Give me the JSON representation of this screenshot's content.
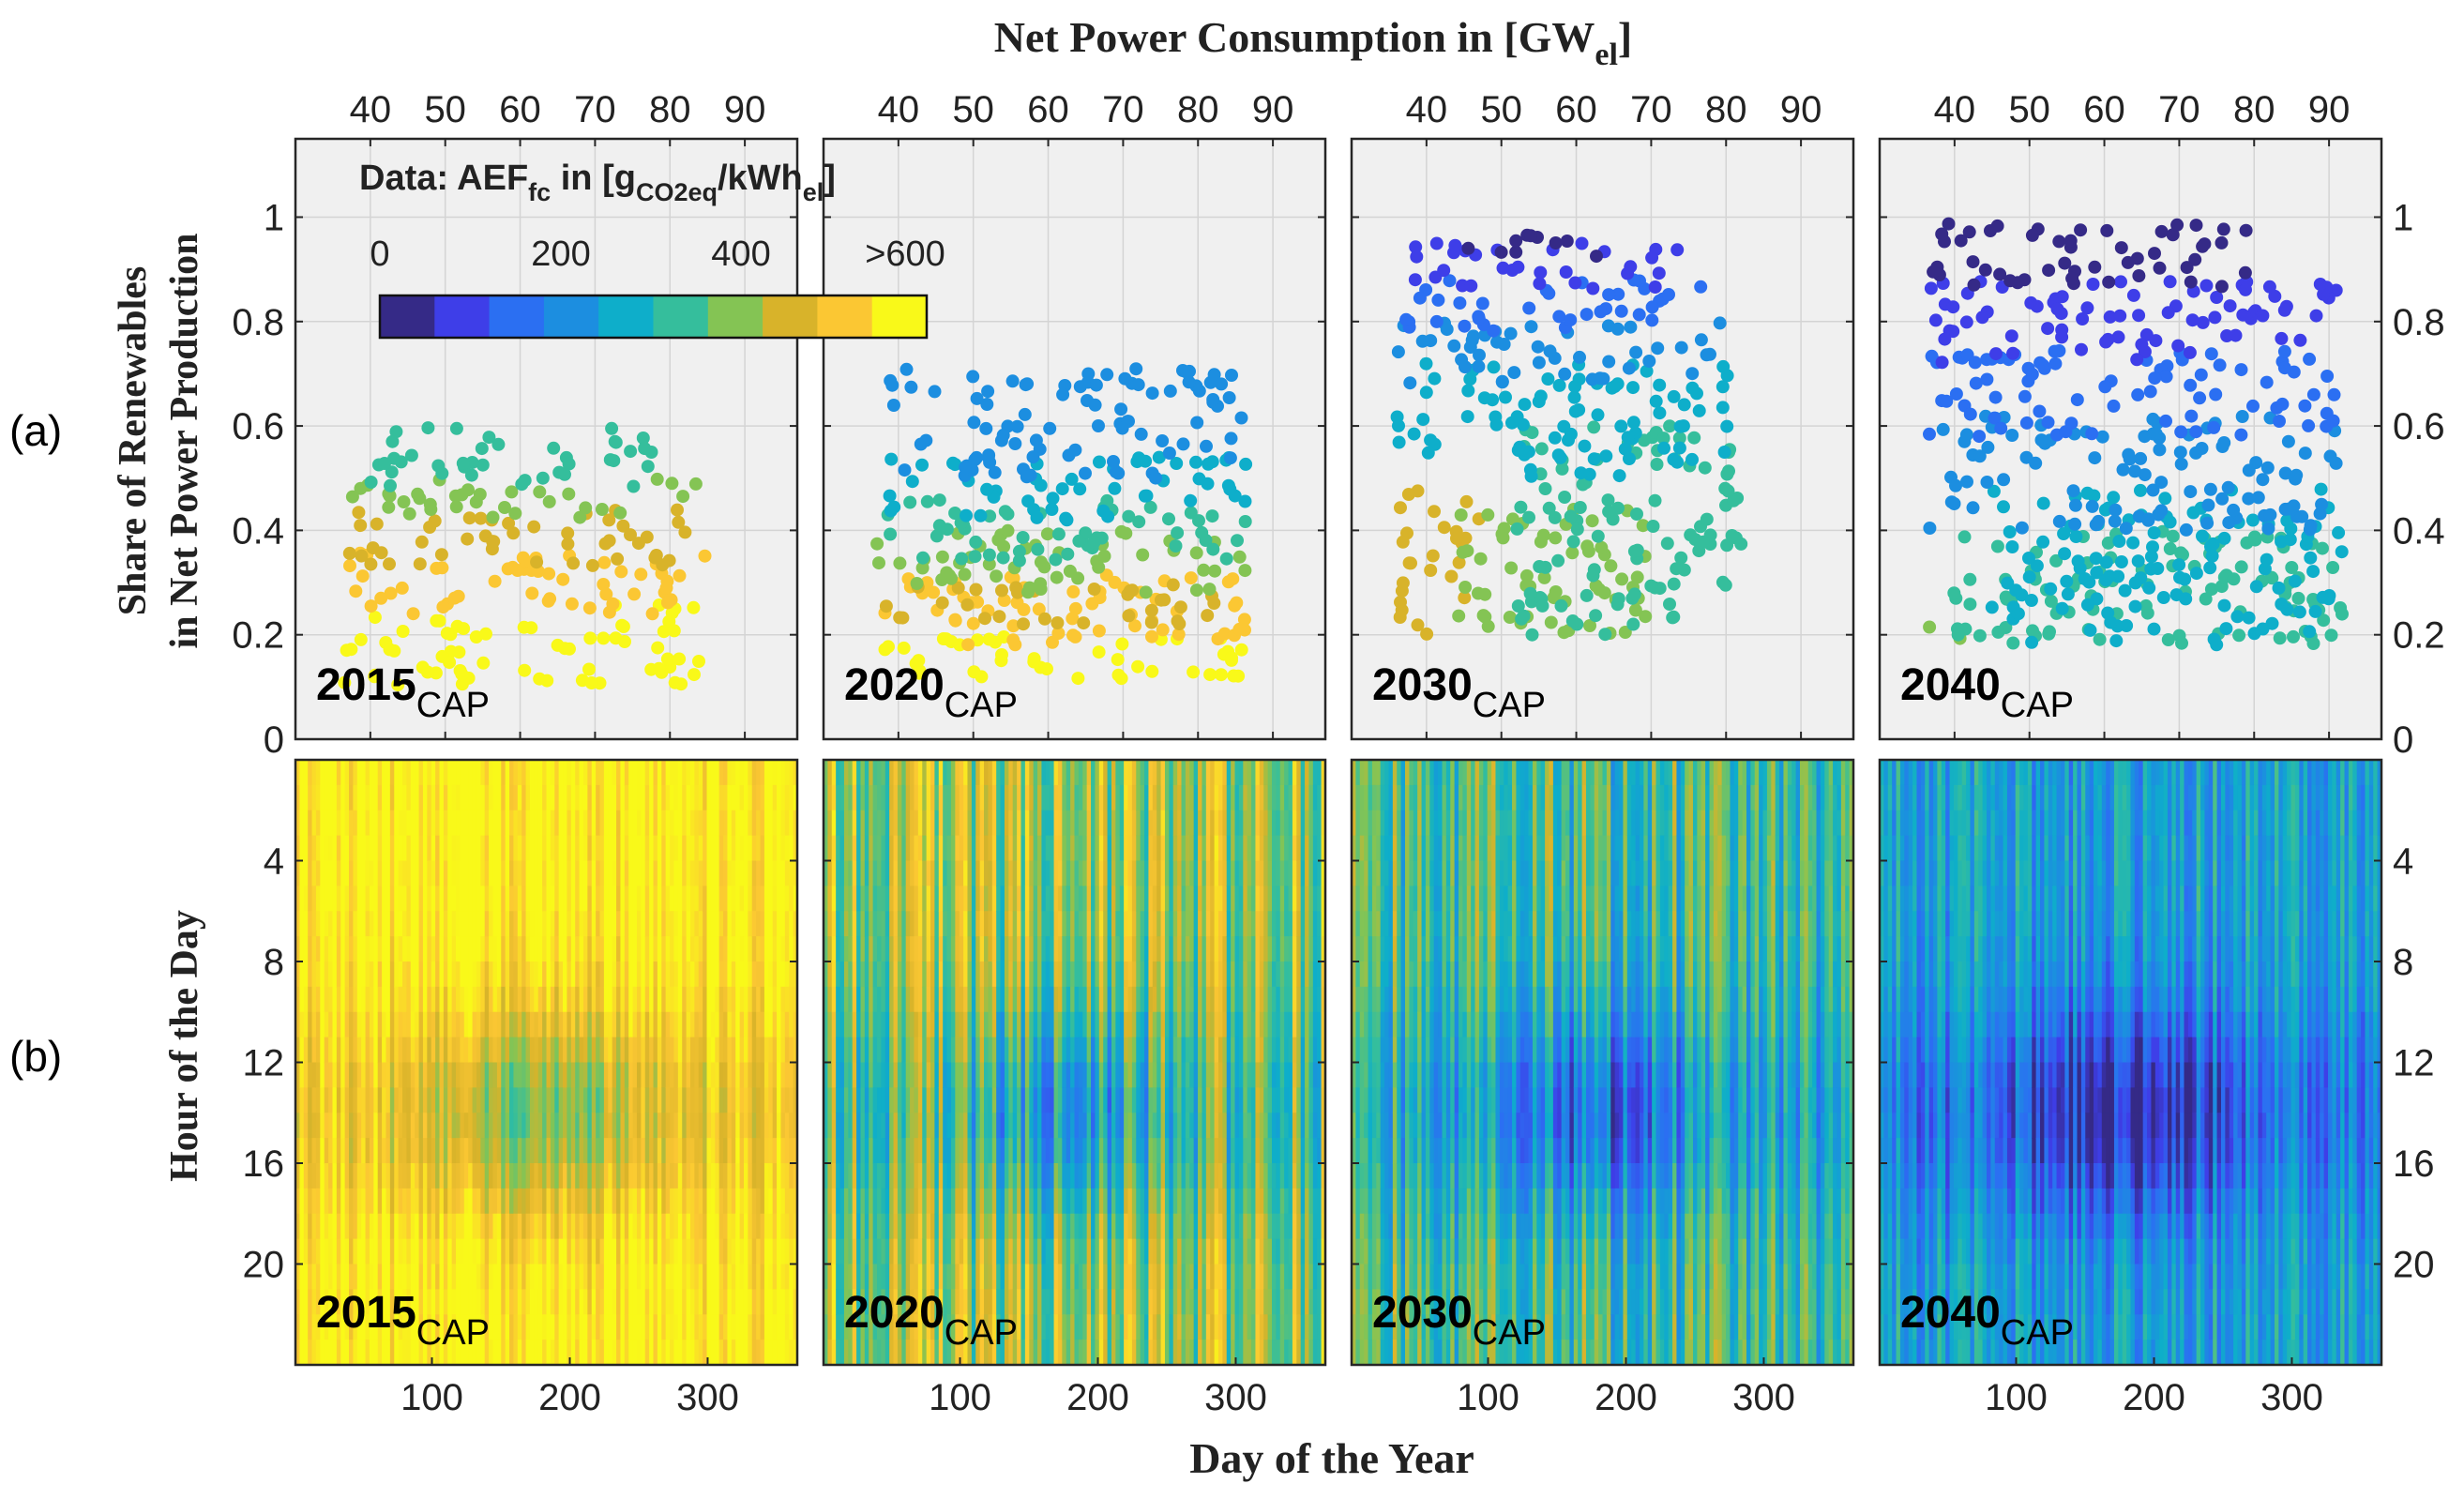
{
  "figure": {
    "top_axis_title": "Net Power Consumption in [GW",
    "top_axis_title_sub": "el",
    "top_axis_title_end": "]",
    "left_axis_title_a_line1": "Share of Renewables",
    "left_axis_title_a_line2": "in Net Power Production",
    "left_axis_title_b": "Hour of the Day",
    "bottom_axis_title": "Day of the Year",
    "row_label_a": "(a)",
    "row_label_b": "(b)"
  },
  "colorbar": {
    "title_main": "Data: AEF",
    "title_sub1": "fc",
    "title_mid": " in [g",
    "title_sub2": "CO2eq",
    "title_mid2": "/kWh",
    "title_sub3": "el",
    "title_end": "]",
    "tick_labels": [
      "0",
      "200",
      "400",
      ">600"
    ],
    "colors": [
      "#352a87",
      "#3e3ee8",
      "#2b6ff2",
      "#1c8ee0",
      "#0eaeca",
      "#35be9c",
      "#84c454",
      "#d8b32a",
      "#fbc733",
      "#f9f919"
    ]
  },
  "chart_data": [
    {
      "type": "scatter",
      "panel": "2015",
      "panel_label": "2015",
      "panel_sub": "CAP",
      "x_axis": {
        "label": "Net Power Consumption in [GWel]",
        "range": [
          30,
          97
        ],
        "ticks": [
          40,
          50,
          60,
          70,
          80,
          90
        ]
      },
      "y_axis": {
        "label": "Share of Renewables in Net Power Production",
        "range": [
          0,
          1.15
        ],
        "ticks": [
          0,
          0.2,
          0.4,
          0.6,
          0.8,
          1
        ]
      },
      "bands": [
        {
          "y": [
            0.1,
            0.26
          ],
          "x": [
            36,
            84
          ],
          "color_index": 9
        },
        {
          "y": [
            0.24,
            0.36
          ],
          "x": [
            36,
            85
          ],
          "color_index": 8
        },
        {
          "y": [
            0.33,
            0.44
          ],
          "x": [
            37,
            84
          ],
          "color_index": 7
        },
        {
          "y": [
            0.42,
            0.5
          ],
          "x": [
            37,
            84
          ],
          "color_index": 6
        },
        {
          "y": [
            0.48,
            0.6
          ],
          "x": [
            40,
            78
          ],
          "color_index": 5
        }
      ]
    },
    {
      "type": "scatter",
      "panel": "2020",
      "panel_label": "2020",
      "panel_sub": "CAP",
      "x_axis": {
        "label": "Net Power Consumption in [GWel]",
        "range": [
          30,
          97
        ],
        "ticks": [
          40,
          50,
          60,
          70,
          80,
          90
        ]
      },
      "y_axis": {
        "range": [
          0,
          1.15
        ],
        "ticks": [
          0,
          0.2,
          0.4,
          0.6,
          0.8,
          1
        ]
      },
      "bands": [
        {
          "y": [
            0.1,
            0.2
          ],
          "x": [
            38,
            87
          ],
          "color_index": 9
        },
        {
          "y": [
            0.18,
            0.32
          ],
          "x": [
            38,
            87
          ],
          "color_index": 8
        },
        {
          "y": [
            0.22,
            0.3
          ],
          "x": [
            38,
            86
          ],
          "color_index": 7
        },
        {
          "y": [
            0.28,
            0.4
          ],
          "x": [
            37,
            87
          ],
          "color_index": 6
        },
        {
          "y": [
            0.34,
            0.46
          ],
          "x": [
            37,
            87
          ],
          "color_index": 5
        },
        {
          "y": [
            0.42,
            0.54
          ],
          "x": [
            38,
            87
          ],
          "color_index": 4
        },
        {
          "y": [
            0.5,
            0.71
          ],
          "x": [
            38,
            87
          ],
          "color_index": 3
        }
      ]
    },
    {
      "type": "scatter",
      "panel": "2030",
      "panel_label": "2030",
      "panel_sub": "CAP",
      "x_axis": {
        "label": "Net Power Consumption in [GWel]",
        "range": [
          30,
          97
        ],
        "ticks": [
          40,
          50,
          60,
          70,
          80,
          90
        ]
      },
      "y_axis": {
        "range": [
          0,
          1.15
        ],
        "ticks": [
          0,
          0.2,
          0.4,
          0.6,
          0.8,
          1
        ]
      },
      "bands": [
        {
          "y": [
            0.2,
            0.48
          ],
          "x": [
            36,
            47
          ],
          "color_index": 7
        },
        {
          "y": [
            0.2,
            0.45
          ],
          "x": [
            44,
            70
          ],
          "color_index": 6
        },
        {
          "y": [
            0.2,
            0.6
          ],
          "x": [
            52,
            82
          ],
          "color_index": 5
        },
        {
          "y": [
            0.5,
            0.72
          ],
          "x": [
            36,
            81
          ],
          "color_index": 4
        },
        {
          "y": [
            0.68,
            0.8
          ],
          "x": [
            36,
            80
          ],
          "color_index": 3
        },
        {
          "y": [
            0.78,
            0.88
          ],
          "x": [
            36,
            78
          ],
          "color_index": 2
        },
        {
          "y": [
            0.86,
            0.95
          ],
          "x": [
            38,
            76
          ],
          "color_index": 1
        },
        {
          "y": [
            0.92,
            0.97
          ],
          "x": [
            45,
            68
          ],
          "color_index": 0
        }
      ]
    },
    {
      "type": "scatter",
      "panel": "2040",
      "panel_label": "2040",
      "panel_sub": "CAP",
      "x_axis": {
        "label": "Net Power Consumption in [GWel]",
        "range": [
          30,
          97
        ],
        "ticks": [
          40,
          50,
          60,
          70,
          80,
          90
        ]
      },
      "y_axis": {
        "range": [
          0,
          1.15
        ],
        "ticks": [
          0,
          0.2,
          0.4,
          0.6,
          0.8,
          1
        ]
      },
      "bands": [
        {
          "y": [
            0.18,
            0.22
          ],
          "x": [
            36,
            42
          ],
          "color_index": 6
        },
        {
          "y": [
            0.18,
            0.4
          ],
          "x": [
            38,
            92
          ],
          "color_index": 5
        },
        {
          "y": [
            0.18,
            0.48
          ],
          "x": [
            45,
            92
          ],
          "color_index": 4
        },
        {
          "y": [
            0.4,
            0.62
          ],
          "x": [
            36,
            91
          ],
          "color_index": 3
        },
        {
          "y": [
            0.58,
            0.75
          ],
          "x": [
            36,
            91
          ],
          "color_index": 2
        },
        {
          "y": [
            0.72,
            0.88
          ],
          "x": [
            36,
            91
          ],
          "color_index": 1
        },
        {
          "y": [
            0.86,
            0.99
          ],
          "x": [
            36,
            80
          ],
          "color_index": 0
        }
      ]
    },
    {
      "type": "heatmap",
      "panel": "2015",
      "panel_label": "2015",
      "panel_sub": "CAP",
      "x_axis": {
        "label": "Day of the Year",
        "range": [
          1,
          365
        ],
        "ticks": [
          100,
          200,
          300
        ]
      },
      "y_axis": {
        "label": "Hour of the Day",
        "range": [
          0,
          24
        ],
        "ticks": [
          4,
          8,
          12,
          16,
          20
        ],
        "reversed": true
      },
      "base_color_index": 9,
      "dip_color_index": 5,
      "dip_depth": 3.2,
      "noise_amplitude": 1.1
    },
    {
      "type": "heatmap",
      "panel": "2020",
      "panel_label": "2020",
      "panel_sub": "CAP",
      "x_axis": {
        "label": "Day of the Year",
        "range": [
          1,
          365
        ],
        "ticks": [
          100,
          200,
          300
        ]
      },
      "y_axis": {
        "range": [
          0,
          24
        ],
        "ticks": [
          4,
          8,
          12,
          16,
          20
        ],
        "reversed": true
      },
      "base_color_index": 6.5,
      "dip_color_index": 2.5,
      "dip_depth": 3.0,
      "noise_amplitude": 2.2
    },
    {
      "type": "heatmap",
      "panel": "2030",
      "panel_label": "2030",
      "panel_sub": "CAP",
      "x_axis": {
        "label": "Day of the Year",
        "range": [
          1,
          365
        ],
        "ticks": [
          100,
          200,
          300
        ]
      },
      "y_axis": {
        "range": [
          0,
          24
        ],
        "ticks": [
          4,
          8,
          12,
          16,
          20
        ],
        "reversed": true
      },
      "base_color_index": 5,
      "dip_color_index": 1,
      "dip_depth": 3.0,
      "noise_amplitude": 2.0
    },
    {
      "type": "heatmap",
      "panel": "2040",
      "panel_label": "2040",
      "panel_sub": "CAP",
      "x_axis": {
        "label": "Day of the Year",
        "range": [
          1,
          365
        ],
        "ticks": [
          100,
          200,
          300
        ]
      },
      "y_axis": {
        "range": [
          0,
          24
        ],
        "ticks": [
          4,
          8,
          12,
          16,
          20
        ],
        "reversed": true
      },
      "base_color_index": 3.5,
      "dip_color_index": 0,
      "dip_depth": 3.3,
      "noise_amplitude": 1.6
    }
  ]
}
